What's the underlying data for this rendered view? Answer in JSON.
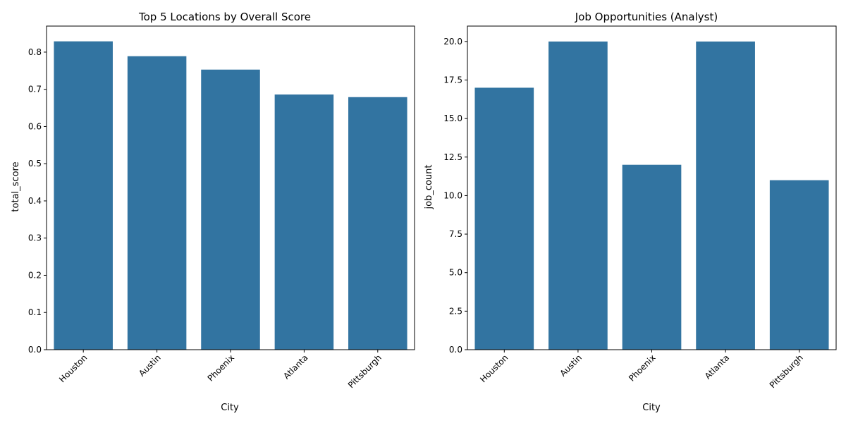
{
  "colors": {
    "bar": "#3274a1",
    "axis": "#000000",
    "background": "#ffffff"
  },
  "chart_data": [
    {
      "type": "bar",
      "title": "Top 5 Locations by Overall Score",
      "xlabel": "City",
      "ylabel": "total_score",
      "categories": [
        "Houston",
        "Austin",
        "Phoenix",
        "Atlanta",
        "Pittsburgh"
      ],
      "values": [
        0.829,
        0.789,
        0.753,
        0.686,
        0.679
      ],
      "ylim": [
        0,
        0.87
      ],
      "yticks": [
        0.0,
        0.1,
        0.2,
        0.3,
        0.4,
        0.5,
        0.6,
        0.7,
        0.8
      ],
      "ytick_labels": [
        "0.0",
        "0.1",
        "0.2",
        "0.3",
        "0.4",
        "0.5",
        "0.6",
        "0.7",
        "0.8"
      ],
      "grid": false,
      "legend": "none"
    },
    {
      "type": "bar",
      "title": "Job Opportunities (Analyst)",
      "xlabel": "City",
      "ylabel": "job_count",
      "categories": [
        "Houston",
        "Austin",
        "Phoenix",
        "Atlanta",
        "Pittsburgh"
      ],
      "values": [
        17,
        20,
        12,
        20,
        11
      ],
      "ylim": [
        0,
        21
      ],
      "yticks": [
        0.0,
        2.5,
        5.0,
        7.5,
        10.0,
        12.5,
        15.0,
        17.5,
        20.0
      ],
      "ytick_labels": [
        "0.0",
        "2.5",
        "5.0",
        "7.5",
        "10.0",
        "12.5",
        "15.0",
        "17.5",
        "20.0"
      ],
      "grid": false,
      "legend": "none"
    }
  ]
}
